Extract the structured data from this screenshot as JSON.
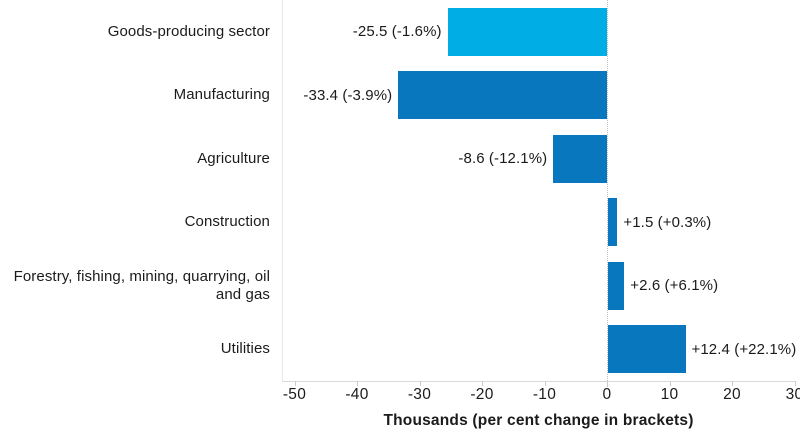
{
  "chart_data": {
    "type": "bar",
    "orientation": "horizontal",
    "title": "",
    "xlabel": "Thousands (per cent change in brackets)",
    "ylabel": "",
    "categories": [
      "Goods-producing sector",
      "Manufacturing",
      "Agriculture",
      "Construction",
      "Forestry, fishing, mining, quarrying, oil and gas",
      "Utilities"
    ],
    "values": [
      -25.5,
      -33.4,
      -8.6,
      1.5,
      2.6,
      12.4
    ],
    "percent_changes": [
      -1.6,
      -3.9,
      -12.1,
      0.3,
      6.1,
      22.1
    ],
    "data_labels": [
      "-25.5 (-1.6%)",
      "-33.4 (-3.9%)",
      "-8.6 (-12.1%)",
      "+1.5 (+0.3%)",
      "+2.6 (+6.1%)",
      "+12.4 (+22.1%)"
    ],
    "bar_colors": [
      "#00AEE5",
      "#0877BD",
      "#0877BD",
      "#0877BD",
      "#0877BD",
      "#0877BD"
    ],
    "x_ticks": [
      -50,
      -40,
      -30,
      -20,
      -10,
      0,
      10,
      20,
      30
    ],
    "xlim": [
      -51.8,
      30.2
    ],
    "grid": "dotted vertical line at zero only",
    "legend": "none",
    "units": "thousands of jobs"
  },
  "colors": {
    "highlight_bar": "#00AEE5",
    "default_bar": "#0877BD",
    "text": "#1b1b1b",
    "axis_line": "#d9d9d9",
    "zero_gridline": "#bfbfbf",
    "background": "#ffffff"
  }
}
